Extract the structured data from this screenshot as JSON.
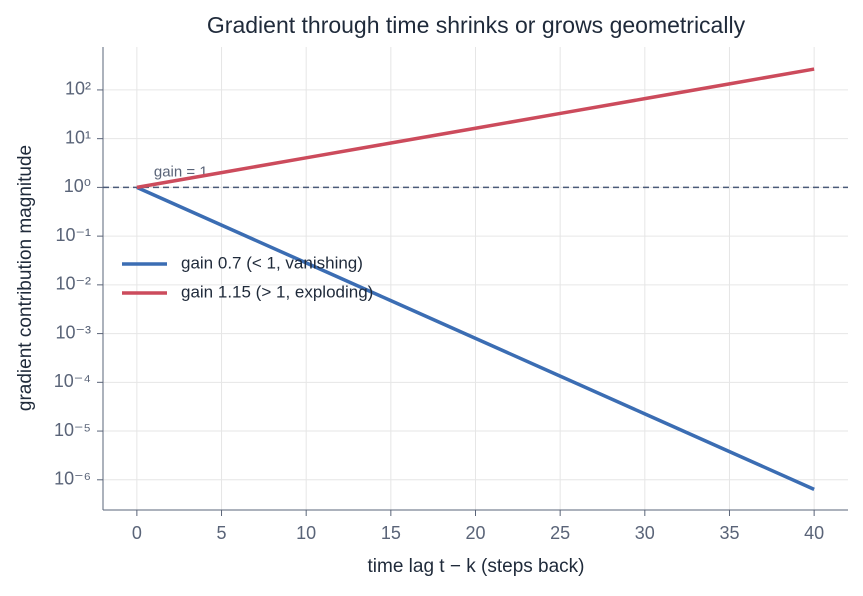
{
  "chart_data": {
    "type": "line",
    "title": "Gradient through time shrinks or grows geometrically",
    "x_label": "time lag  t − k  (steps back)",
    "y_label": "gradient contribution magnitude",
    "x": [
      0,
      5,
      10,
      15,
      20,
      25,
      30,
      35,
      40
    ],
    "series": [
      {
        "name": "gain 0.7 (< 1, vanishing)",
        "color": "#3b6db3",
        "values": [
          1,
          0.16807,
          0.0282475,
          0.00474756,
          0.000797923,
          0.000134107,
          2.25393e-05,
          3.78819e-06,
          6.36681e-07
        ]
      },
      {
        "name": "gain 1.15 (> 1, exploding)",
        "color": "#cc4b5c",
        "values": [
          1,
          2.01136,
          4.04556,
          8.13706,
          16.3665,
          32.919,
          66.2118,
          133.176,
          267.864
        ]
      }
    ],
    "reference_line": {
      "value": 1,
      "label": "gain = 1"
    },
    "xlim": [
      -2,
      42
    ],
    "xticks": [
      0,
      5,
      10,
      15,
      20,
      25,
      30,
      35,
      40
    ],
    "ylim": [
      2.4e-07,
      760
    ],
    "yticks": [
      {
        "value": 1e-06,
        "label": "10⁻⁶"
      },
      {
        "value": 1e-05,
        "label": "10⁻⁵"
      },
      {
        "value": 0.0001,
        "label": "10⁻⁴"
      },
      {
        "value": 0.001,
        "label": "10⁻³"
      },
      {
        "value": 0.01,
        "label": "10⁻²"
      },
      {
        "value": 0.1,
        "label": "10⁻¹"
      },
      {
        "value": 1,
        "label": "10⁰"
      },
      {
        "value": 10,
        "label": "10¹"
      },
      {
        "value": 100,
        "label": "10²"
      }
    ],
    "y_scale": "log",
    "grid": true,
    "legend_position": "center left"
  }
}
